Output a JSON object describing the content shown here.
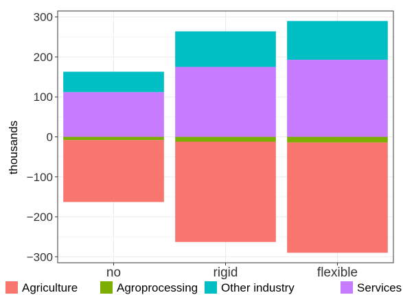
{
  "chart_data": {
    "type": "bar",
    "stacked": true,
    "diverging": true,
    "categories": [
      "no",
      "rigid",
      "flexible"
    ],
    "series": [
      {
        "name": "Agriculture",
        "color": "#F8766D",
        "values": [
          -155,
          -251,
          -276
        ]
      },
      {
        "name": "Agroprocessing",
        "color": "#7CAE00",
        "values": [
          -8,
          -12,
          -14
        ]
      },
      {
        "name": "Other industry",
        "color": "#00BFC4",
        "values": [
          51,
          89,
          97
        ]
      },
      {
        "name": "Services",
        "color": "#C77CFF",
        "values": [
          112,
          175,
          193
        ]
      }
    ],
    "positive_order": [
      "Services",
      "Other industry"
    ],
    "negative_order": [
      "Agroprocessing",
      "Agriculture"
    ],
    "ylabel": "thousands",
    "xlabel": "",
    "title": "",
    "ylim": [
      -315,
      315
    ],
    "yticks": [
      -300,
      -200,
      -100,
      0,
      100,
      200,
      300
    ],
    "ytick_labels": [
      "−300",
      "−200",
      "−100",
      "0",
      "100",
      "200",
      "300"
    ],
    "grid": true,
    "legend_position": "bottom"
  }
}
